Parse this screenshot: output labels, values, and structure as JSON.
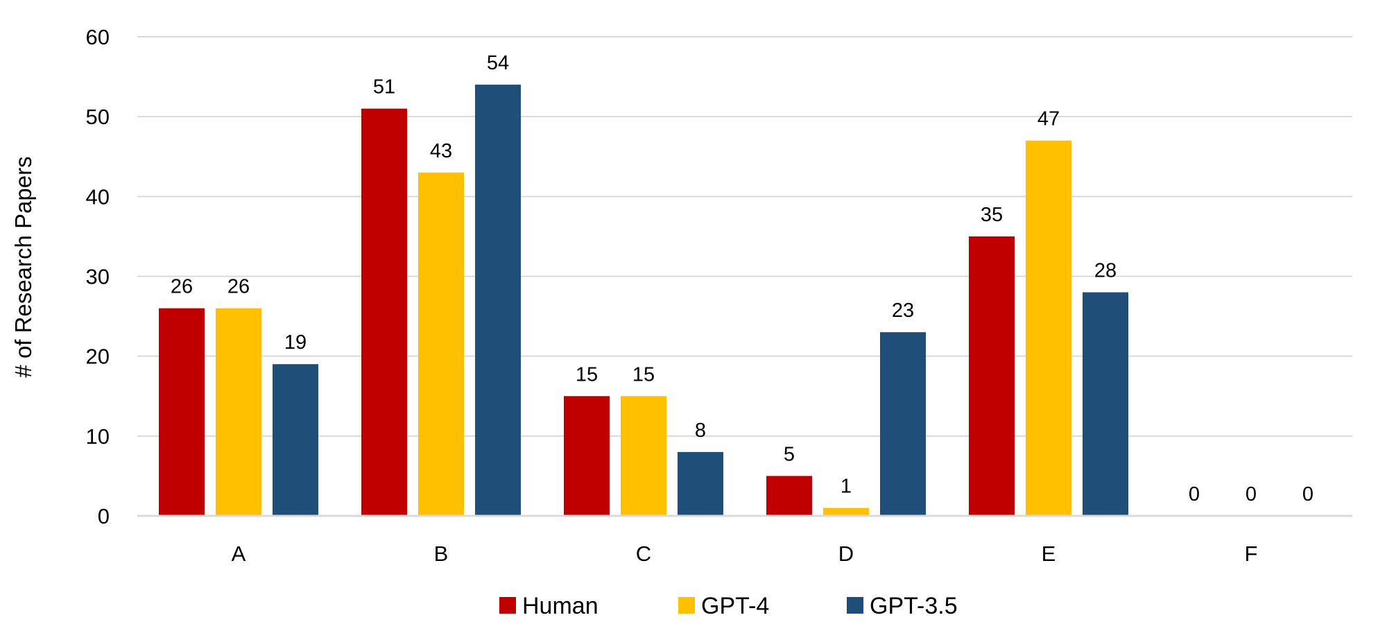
{
  "chart_data": {
    "type": "bar",
    "title": "",
    "xlabel": "",
    "ylabel": "# of Research Papers",
    "ylim": [
      0,
      60
    ],
    "yticks": [
      0,
      10,
      20,
      30,
      40,
      50,
      60
    ],
    "grid": true,
    "legend_position": "bottom",
    "categories": [
      "A",
      "B",
      "C",
      "D",
      "E",
      "F"
    ],
    "series": [
      {
        "name": "Human",
        "color": "#C00000",
        "values": [
          26,
          51,
          15,
          5,
          35,
          0
        ]
      },
      {
        "name": "GPT-4",
        "color": "#FFC000",
        "values": [
          26,
          43,
          15,
          1,
          47,
          0
        ]
      },
      {
        "name": "GPT-3.5",
        "color": "#1F4E79",
        "values": [
          19,
          54,
          8,
          23,
          28,
          0
        ]
      }
    ]
  }
}
